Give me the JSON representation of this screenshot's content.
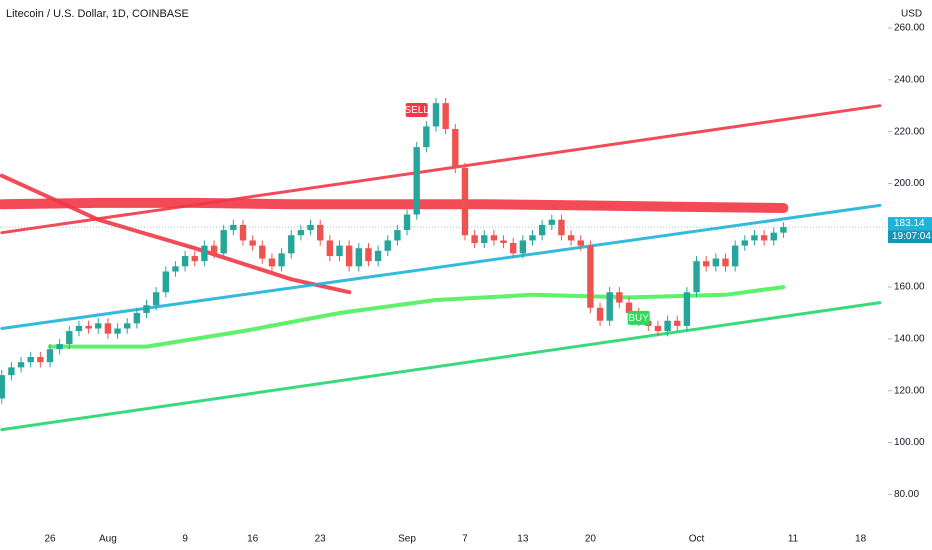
{
  "chart_data": {
    "type": "candlestick",
    "title": "Litecoin / U.S. Dollar, 1D, COINBASE",
    "y_axis_label": "USD",
    "countdown": "19:07:04",
    "up_color": "#26a69a",
    "down_color": "#ef5350",
    "categories": [
      null,
      null,
      null,
      null,
      null,
      "26",
      null,
      null,
      null,
      null,
      null,
      "Aug",
      null,
      null,
      null,
      null,
      null,
      null,
      null,
      "9",
      null,
      null,
      null,
      null,
      null,
      null,
      "16",
      null,
      null,
      null,
      null,
      null,
      null,
      "23",
      null,
      null,
      null,
      null,
      null,
      null,
      null,
      null,
      "Sep",
      null,
      null,
      null,
      null,
      null,
      "7",
      null,
      null,
      null,
      null,
      null,
      "13",
      null,
      null,
      null,
      null,
      null,
      null,
      "20",
      null,
      null,
      null,
      null,
      null,
      null,
      null,
      null,
      null,
      null,
      "Oct",
      null,
      null,
      null,
      null,
      null,
      null,
      null,
      null,
      null,
      "11",
      null,
      null,
      null,
      null,
      null,
      null,
      "18",
      null,
      null
    ],
    "open": [
      117,
      126,
      129,
      131,
      133,
      131,
      136,
      138,
      143,
      145,
      144,
      146,
      142,
      144,
      146,
      150,
      153,
      158,
      166,
      168,
      172,
      170,
      176,
      173,
      182,
      184,
      178,
      176,
      171,
      168,
      173,
      180,
      182,
      184,
      178,
      172,
      176,
      168,
      175,
      170,
      174,
      178,
      182,
      188,
      214,
      222,
      231,
      221,
      206,
      180,
      177,
      180,
      178,
      177,
      173,
      178,
      180,
      184,
      186,
      180,
      178,
      176,
      152,
      147,
      158,
      154,
      150,
      147,
      145,
      143,
      147,
      145,
      158,
      170,
      168,
      171,
      168,
      176,
      178,
      180,
      178,
      181,
      null,
      null,
      null,
      null,
      null,
      null,
      null,
      null,
      null,
      null
    ],
    "high": [
      128,
      131,
      133,
      135,
      135,
      138,
      140,
      145,
      147,
      147,
      148,
      148,
      146,
      148,
      152,
      155,
      160,
      168,
      170,
      174,
      174,
      178,
      178,
      184,
      186,
      186,
      180,
      178,
      173,
      175,
      182,
      184,
      186,
      186,
      180,
      178,
      178,
      177,
      177,
      176,
      180,
      184,
      190,
      216,
      224,
      233,
      233,
      223,
      208,
      182,
      182,
      182,
      180,
      179,
      180,
      182,
      186,
      188,
      188,
      182,
      180,
      178,
      154,
      160,
      160,
      156,
      152,
      149,
      147,
      149,
      149,
      160,
      172,
      172,
      173,
      173,
      178,
      180,
      182,
      182,
      183,
      185,
      null,
      null,
      null,
      null,
      null,
      null,
      null,
      null,
      null,
      null
    ],
    "low": [
      115,
      124,
      127,
      129,
      129,
      129,
      134,
      136,
      141,
      142,
      142,
      140,
      140,
      142,
      144,
      148,
      151,
      156,
      164,
      166,
      168,
      168,
      171,
      171,
      180,
      176,
      174,
      169,
      166,
      166,
      171,
      178,
      180,
      176,
      170,
      170,
      166,
      166,
      168,
      168,
      172,
      176,
      180,
      186,
      212,
      220,
      219,
      204,
      178,
      175,
      175,
      176,
      175,
      171,
      171,
      176,
      178,
      182,
      178,
      176,
      174,
      150,
      145,
      145,
      152,
      148,
      145,
      143,
      141,
      141,
      143,
      143,
      156,
      166,
      166,
      166,
      166,
      174,
      176,
      176,
      176,
      179,
      null,
      null,
      null,
      null,
      null,
      null,
      null,
      null,
      null,
      null
    ],
    "close": [
      126,
      129,
      131,
      133,
      131,
      136,
      138,
      143,
      145,
      144,
      146,
      142,
      144,
      146,
      150,
      153,
      158,
      166,
      168,
      172,
      170,
      176,
      173,
      182,
      184,
      178,
      176,
      171,
      168,
      173,
      180,
      182,
      184,
      178,
      172,
      176,
      168,
      175,
      170,
      174,
      178,
      182,
      188,
      214,
      222,
      231,
      221,
      206,
      180,
      177,
      180,
      178,
      177,
      173,
      178,
      180,
      184,
      186,
      180,
      178,
      176,
      152,
      147,
      158,
      154,
      150,
      147,
      145,
      143,
      147,
      145,
      158,
      170,
      168,
      171,
      168,
      176,
      178,
      180,
      178,
      181,
      183.14,
      null,
      null,
      null,
      null,
      null,
      null,
      null,
      null,
      null,
      null
    ],
    "ylim": [
      67,
      270.8
    ],
    "yticks": [
      {
        "value": 80,
        "label": "80.00"
      },
      {
        "value": 100,
        "label": "100.00"
      },
      {
        "value": 120,
        "label": "120.00"
      },
      {
        "value": 140,
        "label": "140.00"
      },
      {
        "value": 160,
        "label": "160.00"
      },
      {
        "value": 180,
        "label": "180.00"
      },
      {
        "value": 200,
        "label": "200.00"
      },
      {
        "value": 220,
        "label": "220.00"
      },
      {
        "value": 240,
        "label": "240.00"
      },
      {
        "value": 260,
        "label": "260.00"
      }
    ],
    "overlays": [
      {
        "color": "#f23645",
        "width": 10,
        "x": [
          0,
          10,
          20,
          30,
          40,
          50,
          60,
          70,
          81
        ],
        "values": [
          192,
          192.5,
          192.5,
          192,
          192,
          192,
          191.5,
          191,
          190.5
        ]
      },
      {
        "color": "#f23645",
        "width": 4,
        "x": [
          0,
          10,
          20,
          30,
          36
        ],
        "values": [
          203,
          186,
          175,
          163,
          158
        ]
      },
      {
        "color": "#4cef5a",
        "width": 4,
        "x": [
          5,
          15,
          25,
          35,
          45,
          55,
          65,
          75,
          81
        ],
        "values": [
          137,
          137,
          143,
          150,
          155,
          157,
          156,
          157,
          160
        ]
      },
      {
        "color": "#f23645",
        "width": 3,
        "x": [
          0,
          91
        ],
        "values": [
          181,
          230
        ]
      },
      {
        "color": "#1eb3d8",
        "width": 3,
        "x": [
          0,
          91
        ],
        "values": [
          144,
          191.5
        ]
      },
      {
        "color": "#22d66c",
        "width": 3,
        "x": [
          0,
          91
        ],
        "values": [
          105,
          154
        ]
      }
    ],
    "annotations": [
      {
        "text": "SELL",
        "color": "#f23645"
      },
      {
        "text": "BUY",
        "color": "#2ed85a"
      }
    ]
  }
}
